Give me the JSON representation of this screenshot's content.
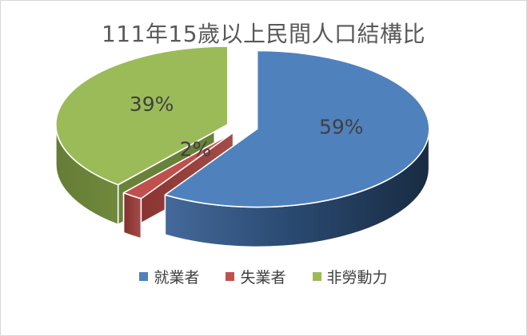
{
  "chart_data": {
    "type": "pie",
    "style": "3d-exploded-pie",
    "title": "111年15歲以上民間人口結構比",
    "labels": [
      "就業者",
      "失業者",
      "非勞動力"
    ],
    "values": [
      59,
      2,
      39
    ],
    "data_labels": [
      "59%",
      "2%",
      "39%"
    ],
    "colors": [
      "#4F81BD",
      "#C0504D",
      "#9BBB59"
    ],
    "data_label_color": "#404040",
    "title_color": "#595959",
    "legend_position": "bottom",
    "background": "#FFFFFF"
  }
}
